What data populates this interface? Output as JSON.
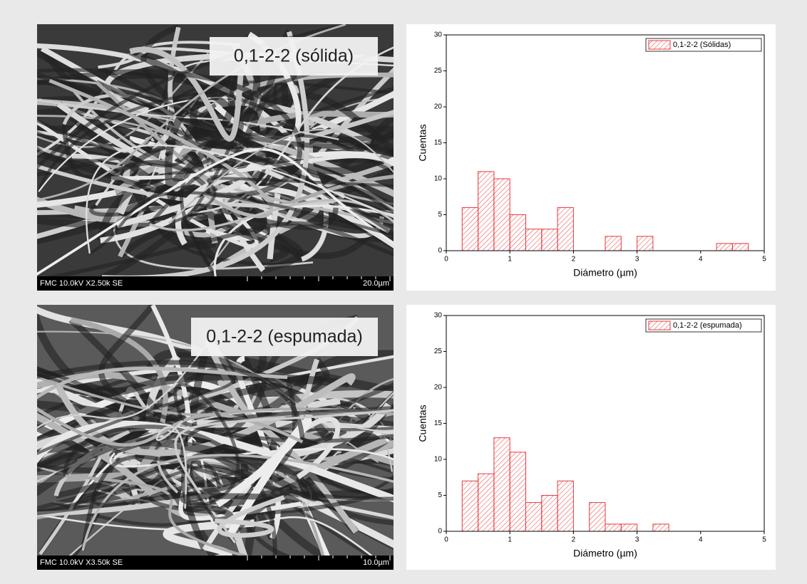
{
  "images": [
    {
      "label": "0,1-2-2 (sólida)",
      "info": "FMC 10.0kV X2.50k SE",
      "scale": "20.0µm"
    },
    {
      "label": "0,1-2-2 (espumada)",
      "info": "FMC 10.0kV X3.50k SE",
      "scale": "10.0µm"
    }
  ],
  "chart_data": [
    {
      "type": "histogram",
      "xlabel": "Diámetro (µm)",
      "ylabel": "Cuentas",
      "bins": [
        0.25,
        0.5,
        0.75,
        1,
        1.25,
        1.5,
        1.75,
        2,
        2.25,
        2.5,
        2.75,
        3,
        3.25,
        3.5,
        3.75,
        4,
        4.25,
        4.5,
        4.75
      ],
      "series": [
        {
          "name": "0,1-2-2 (Sólidas)",
          "color": "#e8383d",
          "values": [
            6,
            11,
            10,
            5,
            3,
            3,
            6,
            0,
            0,
            2,
            0,
            2,
            0,
            0,
            0,
            0,
            1,
            1
          ]
        }
      ],
      "xlim": [
        0,
        5
      ],
      "ylim": [
        0,
        30
      ],
      "xticks": [
        0,
        1,
        2,
        3,
        4,
        5
      ],
      "yticks": [
        0,
        5,
        10,
        15,
        20,
        25,
        30
      ],
      "legend": "upper right"
    },
    {
      "type": "histogram",
      "xlabel": "Diámetro (µm)",
      "ylabel": "Cuentas",
      "bins": [
        0.25,
        0.5,
        0.75,
        1,
        1.25,
        1.5,
        1.75,
        2,
        2.25,
        2.5,
        2.75,
        3,
        3.25,
        3.5
      ],
      "series": [
        {
          "name": "0,1-2-2 (espumada)",
          "color": "#e8383d",
          "values": [
            7,
            8,
            13,
            11,
            4,
            5,
            7,
            0,
            4,
            1,
            1,
            0,
            1
          ]
        }
      ],
      "xlim": [
        0,
        5
      ],
      "ylim": [
        0,
        30
      ],
      "xticks": [
        0,
        1,
        2,
        3,
        4,
        5
      ],
      "yticks": [
        0,
        5,
        10,
        15,
        20,
        25,
        30
      ],
      "legend": "upper right"
    }
  ]
}
